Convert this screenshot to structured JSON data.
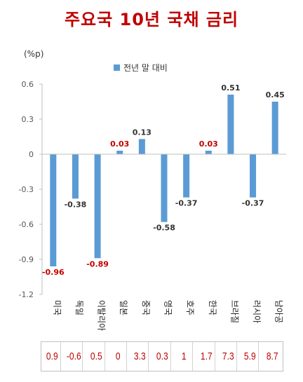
{
  "title": "주요국 10년 국채 금리",
  "unit_label": "(%p)",
  "chart_data": {
    "type": "bar",
    "categories": [
      "미국",
      "독일",
      "이탈리아",
      "일본",
      "중국",
      "영국",
      "호주",
      "한국",
      "브라질",
      "러시아",
      "남아공"
    ],
    "series": [
      {
        "name": "전년 말 대비",
        "values": [
          -0.96,
          -0.38,
          -0.89,
          0.03,
          0.13,
          -0.58,
          -0.37,
          0.03,
          0.51,
          -0.37,
          0.45
        ]
      }
    ],
    "data_labels": [
      "-0.96",
      "-0.38",
      "-0.89",
      "0.03",
      "0.13",
      "-0.58",
      "-0.37",
      "0.03",
      "0.51",
      "-0.37",
      "0.45"
    ],
    "label_colors": [
      "#c00000",
      "#333333",
      "#c00000",
      "#c00000",
      "#333333",
      "#333333",
      "#333333",
      "#c00000",
      "#333333",
      "#333333",
      "#333333"
    ],
    "ylim": [
      -1.2,
      0.6
    ],
    "yticks": [
      "0.6",
      "0.3",
      "0",
      "-0.3",
      "-0.6",
      "-0.9",
      "-1.2"
    ],
    "bar_color": "#5b9bd5",
    "legend_position": "top",
    "grid": false
  },
  "table_values": [
    "0.9",
    "-0.6",
    "0.5",
    "0",
    "3.3",
    "0.3",
    "1",
    "1.7",
    "7.3",
    "5.9",
    "8.7"
  ]
}
